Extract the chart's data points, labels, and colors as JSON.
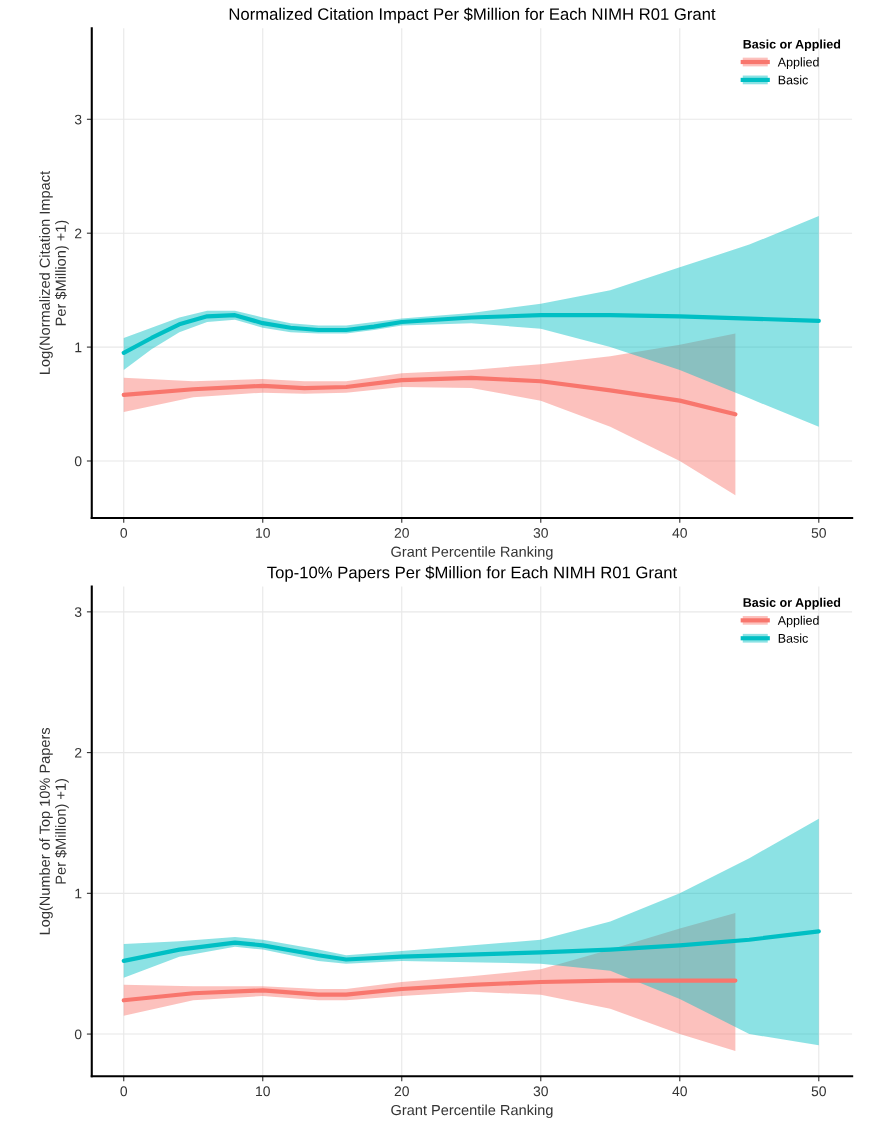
{
  "chart_data": [
    {
      "type": "line",
      "title": "Normalized Citation Impact Per $Million for Each NIMH R01 Grant",
      "xlabel": "Grant Percentile Ranking",
      "ylabel": "Log(Normalized Citation Impact\nPer $Million) +1)",
      "legend_title": "Basic or Applied",
      "legend": "top right",
      "grid": true,
      "xlim": [
        -2.3,
        52.4
      ],
      "xticks": [
        0,
        10,
        20,
        30,
        40,
        50
      ],
      "ylim": [
        -0.5,
        3.8
      ],
      "yticks": [
        0,
        1,
        2,
        3
      ],
      "series": [
        {
          "name": "Applied",
          "color": "#f8766d",
          "x": [
            0,
            5,
            10,
            13,
            16,
            20,
            25,
            30,
            35,
            40,
            44
          ],
          "values": [
            0.58,
            0.63,
            0.66,
            0.64,
            0.65,
            0.71,
            0.73,
            0.7,
            0.62,
            0.53,
            0.41
          ],
          "lower": [
            0.43,
            0.56,
            0.6,
            0.59,
            0.6,
            0.65,
            0.64,
            0.53,
            0.3,
            0.0,
            -0.3
          ],
          "upper": [
            0.73,
            0.7,
            0.72,
            0.7,
            0.7,
            0.77,
            0.8,
            0.85,
            0.92,
            1.02,
            1.12
          ]
        },
        {
          "name": "Basic",
          "color": "#00bfc4",
          "x": [
            0,
            2,
            4,
            6,
            8,
            10,
            12,
            14,
            16,
            18,
            20,
            25,
            30,
            35,
            40,
            45,
            50
          ],
          "values": [
            0.95,
            1.08,
            1.2,
            1.27,
            1.28,
            1.21,
            1.17,
            1.15,
            1.15,
            1.18,
            1.22,
            1.26,
            1.28,
            1.28,
            1.27,
            1.25,
            1.23
          ],
          "lower": [
            0.8,
            0.98,
            1.13,
            1.22,
            1.24,
            1.17,
            1.13,
            1.12,
            1.12,
            1.15,
            1.19,
            1.21,
            1.16,
            1.0,
            0.8,
            0.55,
            0.3
          ],
          "upper": [
            1.08,
            1.17,
            1.26,
            1.32,
            1.32,
            1.26,
            1.21,
            1.19,
            1.19,
            1.22,
            1.25,
            1.3,
            1.38,
            1.5,
            1.7,
            1.9,
            2.15
          ]
        }
      ]
    },
    {
      "type": "line",
      "title": "Top-10% Papers Per $Million for Each NIMH R01 Grant",
      "xlabel": "Grant Percentile Ranking",
      "ylabel": "Log(Number of Top 10% Papers\nPer $Million) +1)",
      "legend_title": "Basic or Applied",
      "legend": "top right",
      "grid": true,
      "xlim": [
        -2.3,
        52.4
      ],
      "xticks": [
        0,
        10,
        20,
        30,
        40,
        50
      ],
      "ylim": [
        -0.3,
        3.18
      ],
      "yticks": [
        0,
        1,
        2,
        3
      ],
      "series": [
        {
          "name": "Applied",
          "color": "#f8766d",
          "x": [
            0,
            5,
            10,
            14,
            16,
            20,
            25,
            30,
            35,
            40,
            44
          ],
          "values": [
            0.24,
            0.29,
            0.31,
            0.28,
            0.28,
            0.32,
            0.35,
            0.37,
            0.38,
            0.38,
            0.38
          ],
          "lower": [
            0.13,
            0.24,
            0.27,
            0.24,
            0.24,
            0.27,
            0.3,
            0.28,
            0.18,
            0.0,
            -0.12
          ],
          "upper": [
            0.35,
            0.34,
            0.34,
            0.32,
            0.32,
            0.37,
            0.41,
            0.46,
            0.6,
            0.75,
            0.86
          ]
        },
        {
          "name": "Basic",
          "color": "#00bfc4",
          "x": [
            0,
            4,
            8,
            10,
            14,
            16,
            20,
            30,
            35,
            40,
            45,
            50
          ],
          "values": [
            0.52,
            0.6,
            0.65,
            0.63,
            0.56,
            0.53,
            0.55,
            0.58,
            0.6,
            0.63,
            0.67,
            0.73
          ],
          "lower": [
            0.4,
            0.55,
            0.62,
            0.6,
            0.52,
            0.5,
            0.52,
            0.5,
            0.45,
            0.25,
            0.0,
            -0.08
          ],
          "upper": [
            0.64,
            0.66,
            0.69,
            0.67,
            0.6,
            0.56,
            0.59,
            0.67,
            0.8,
            1.0,
            1.25,
            1.53
          ]
        }
      ]
    }
  ]
}
